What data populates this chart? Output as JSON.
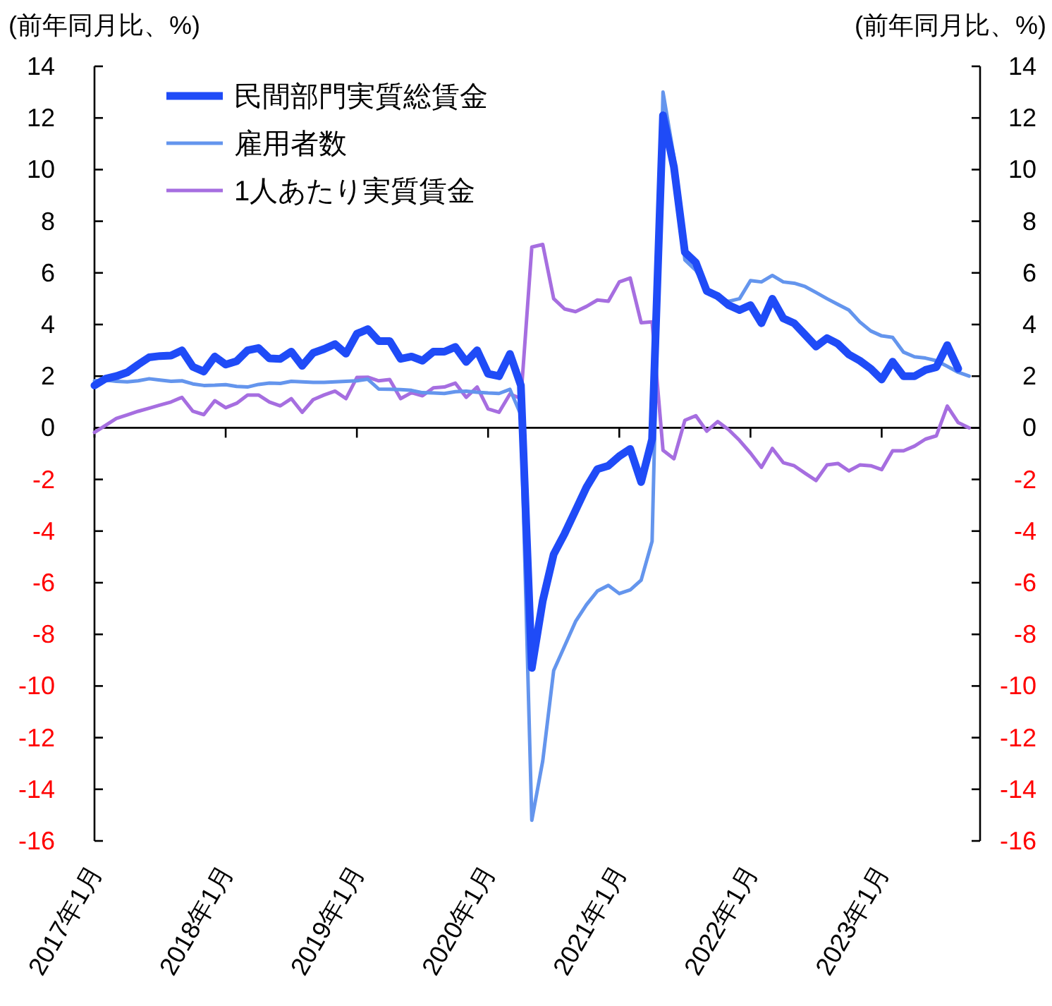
{
  "chart_data": {
    "type": "line",
    "ylabel": "(前年同月比、%)",
    "y2label": "(前年同月比、%)",
    "x": [
      "2017-01",
      "2017-02",
      "2017-03",
      "2017-04",
      "2017-05",
      "2017-06",
      "2017-07",
      "2017-08",
      "2017-09",
      "2017-10",
      "2017-11",
      "2017-12",
      "2018-01",
      "2018-02",
      "2018-03",
      "2018-04",
      "2018-05",
      "2018-06",
      "2018-07",
      "2018-08",
      "2018-09",
      "2018-10",
      "2018-11",
      "2018-12",
      "2019-01",
      "2019-02",
      "2019-03",
      "2019-04",
      "2019-05",
      "2019-06",
      "2019-07",
      "2019-08",
      "2019-09",
      "2019-10",
      "2019-11",
      "2019-12",
      "2020-01",
      "2020-02",
      "2020-03",
      "2020-04",
      "2020-05",
      "2020-06",
      "2020-07",
      "2020-08",
      "2020-09",
      "2020-10",
      "2020-11",
      "2020-12",
      "2021-01",
      "2021-02",
      "2021-03",
      "2021-04",
      "2021-05",
      "2021-06",
      "2021-07",
      "2021-08",
      "2021-09",
      "2021-10",
      "2021-11",
      "2021-12",
      "2022-01",
      "2022-02",
      "2022-03",
      "2022-04",
      "2022-05",
      "2022-06",
      "2022-07",
      "2022-08",
      "2022-09",
      "2022-10",
      "2022-11",
      "2022-12",
      "2023-01",
      "2023-02",
      "2023-03",
      "2023-04",
      "2023-05",
      "2023-06",
      "2023-07",
      "2023-08",
      "2023-09"
    ],
    "xlim": [
      "2017-01",
      "2023-10"
    ],
    "xticks": [
      {
        "value": "2017-01",
        "label": "2017年1月"
      },
      {
        "value": "2018-01",
        "label": "2018年1月"
      },
      {
        "value": "2019-01",
        "label": "2019年1月"
      },
      {
        "value": "2020-01",
        "label": "2020年1月"
      },
      {
        "value": "2021-01",
        "label": "2021年1月"
      },
      {
        "value": "2022-01",
        "label": "2022年1月"
      },
      {
        "value": "2023-01",
        "label": "2023年1月"
      }
    ],
    "ylim": [
      -16,
      14
    ],
    "yticks": [
      -16,
      -14,
      -12,
      -10,
      -8,
      -6,
      -4,
      -2,
      0,
      2,
      4,
      6,
      8,
      10,
      12,
      14
    ],
    "y2lim": [
      -16,
      14
    ],
    "y2ticks": [
      -16,
      -14,
      -12,
      -10,
      -8,
      -6,
      -4,
      -2,
      0,
      2,
      4,
      6,
      8,
      10,
      12,
      14
    ],
    "legend": "top left",
    "marker": "none",
    "line_style": "solid",
    "series": [
      {
        "name": "民間部門実質総賃金",
        "color": "#1f4bf7",
        "values": [
          1.64,
          1.9,
          2.0,
          2.15,
          2.45,
          2.73,
          2.78,
          2.8,
          3.0,
          2.36,
          2.18,
          2.76,
          2.45,
          2.58,
          3.0,
          3.09,
          2.69,
          2.67,
          2.95,
          2.4,
          2.9,
          3.05,
          3.24,
          2.87,
          3.64,
          3.82,
          3.36,
          3.36,
          2.67,
          2.76,
          2.6,
          2.95,
          2.95,
          3.13,
          2.55,
          3.0,
          2.09,
          2.0,
          2.86,
          1.64,
          -9.3,
          -6.7,
          -4.9,
          -4.1,
          -3.2,
          -2.3,
          -1.6,
          -1.47,
          -1.1,
          -0.82,
          -2.1,
          -0.44,
          12.1,
          10.1,
          6.8,
          6.4,
          5.3,
          5.1,
          4.75,
          4.56,
          4.75,
          4.05,
          5.0,
          4.24,
          4.05,
          3.6,
          3.15,
          3.47,
          3.25,
          2.84,
          2.6,
          2.29,
          1.87,
          2.56,
          2.0,
          2.0,
          2.24,
          2.35,
          3.2,
          2.29,
          null
        ]
      },
      {
        "name": "雇用者数",
        "color": "#6495ed",
        "values": [
          1.82,
          1.85,
          1.8,
          1.78,
          1.82,
          1.9,
          1.85,
          1.8,
          1.82,
          1.7,
          1.64,
          1.65,
          1.67,
          1.6,
          1.58,
          1.68,
          1.73,
          1.72,
          1.8,
          1.78,
          1.76,
          1.76,
          1.78,
          1.8,
          1.82,
          1.88,
          1.5,
          1.49,
          1.48,
          1.45,
          1.36,
          1.35,
          1.33,
          1.4,
          1.42,
          1.38,
          1.35,
          1.33,
          1.49,
          0.5,
          -15.2,
          -12.9,
          -9.4,
          -8.45,
          -7.5,
          -6.85,
          -6.32,
          -6.1,
          -6.42,
          -6.28,
          -5.9,
          -4.4,
          13.0,
          10.5,
          6.5,
          6.1,
          5.4,
          5.0,
          4.9,
          5.0,
          5.7,
          5.65,
          5.9,
          5.65,
          5.6,
          5.47,
          5.24,
          5.0,
          4.78,
          4.56,
          4.1,
          3.75,
          3.56,
          3.5,
          2.93,
          2.75,
          2.7,
          2.6,
          2.38,
          2.15,
          2.0
        ]
      },
      {
        "name": "1人あたり実質賃金",
        "color": "#a66ee0",
        "values": [
          -0.18,
          0.09,
          0.36,
          0.5,
          0.64,
          0.76,
          0.88,
          1.0,
          1.18,
          0.64,
          0.51,
          1.05,
          0.78,
          0.95,
          1.27,
          1.27,
          1.0,
          0.85,
          1.13,
          0.6,
          1.09,
          1.27,
          1.42,
          1.13,
          1.95,
          1.96,
          1.82,
          1.87,
          1.13,
          1.36,
          1.24,
          1.55,
          1.58,
          1.73,
          1.18,
          1.58,
          0.73,
          0.6,
          1.31,
          1.13,
          7.0,
          7.1,
          5.0,
          4.6,
          4.5,
          4.7,
          4.95,
          4.9,
          5.65,
          5.8,
          4.07,
          4.1,
          -0.87,
          -1.2,
          0.29,
          0.47,
          -0.13,
          0.24,
          -0.07,
          -0.49,
          -0.98,
          -1.53,
          -0.8,
          -1.35,
          -1.47,
          -1.76,
          -2.04,
          -1.44,
          -1.38,
          -1.67,
          -1.44,
          -1.47,
          -1.62,
          -0.89,
          -0.89,
          -0.71,
          -0.44,
          -0.31,
          0.84,
          0.2,
          0.0
        ]
      }
    ]
  }
}
